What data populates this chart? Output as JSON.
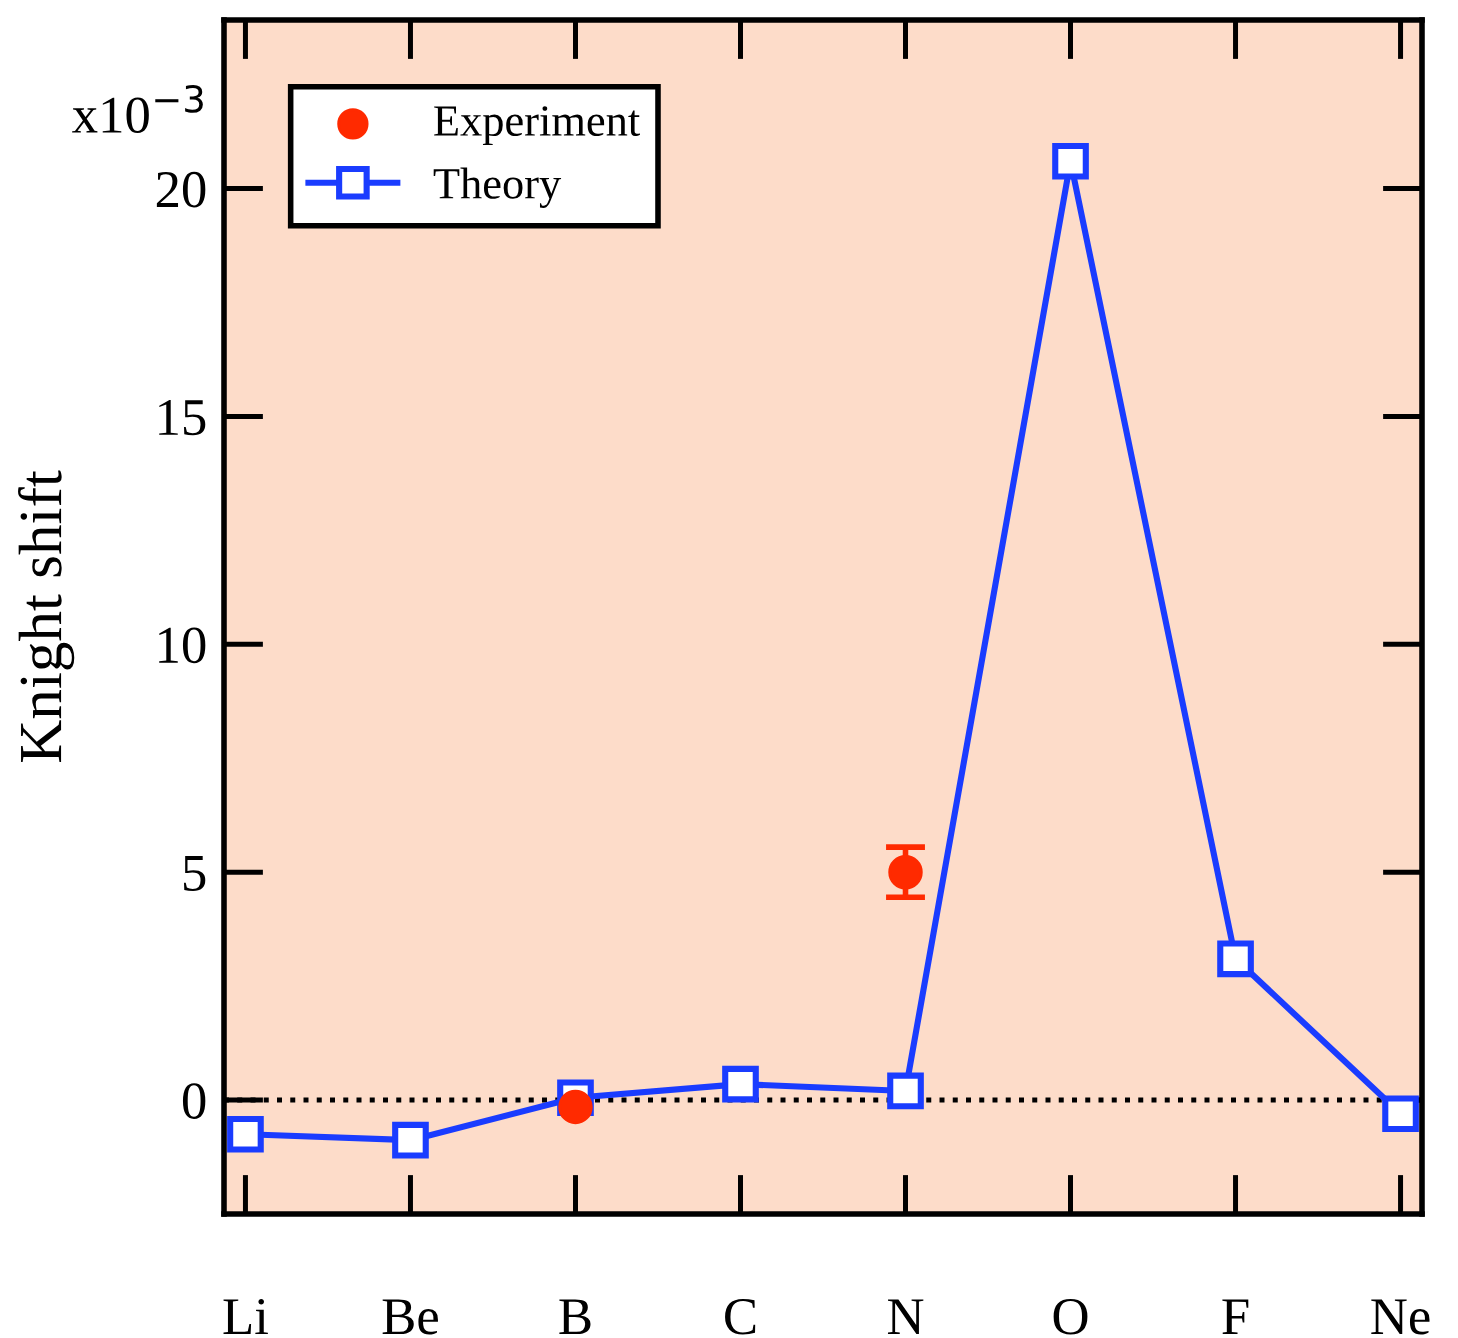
{
  "chart_data": {
    "type": "line",
    "ylabel": "Knight shift",
    "categories": [
      "Li",
      "Be",
      "B",
      "C",
      "N",
      "O",
      "F",
      "Ne"
    ],
    "series": [
      {
        "name": "Experiment",
        "type": "scatter",
        "color": "#ff2a00",
        "marker": "circle",
        "values": [
          null,
          null,
          -0.15,
          null,
          5.0,
          null,
          null,
          null
        ],
        "errors": [
          null,
          null,
          null,
          null,
          0.55,
          null,
          null,
          null
        ]
      },
      {
        "name": "Theory",
        "color": "#1a3cff",
        "marker": "square",
        "line_style": "solid",
        "values": [
          -0.75,
          -0.88,
          0.05,
          0.35,
          0.2,
          20.6,
          3.1,
          -0.3
        ]
      }
    ],
    "ylim": [
      -2.5,
      23.7
    ],
    "yticks": [
      0,
      5,
      10,
      15,
      20
    ],
    "annotations": [
      "x10$^{−3}$"
    ],
    "ref_lines": [
      {
        "axis": "y",
        "value": 0,
        "color": "#000000",
        "line_style": "dotted"
      }
    ],
    "grid": false,
    "legend": "top left"
  }
}
